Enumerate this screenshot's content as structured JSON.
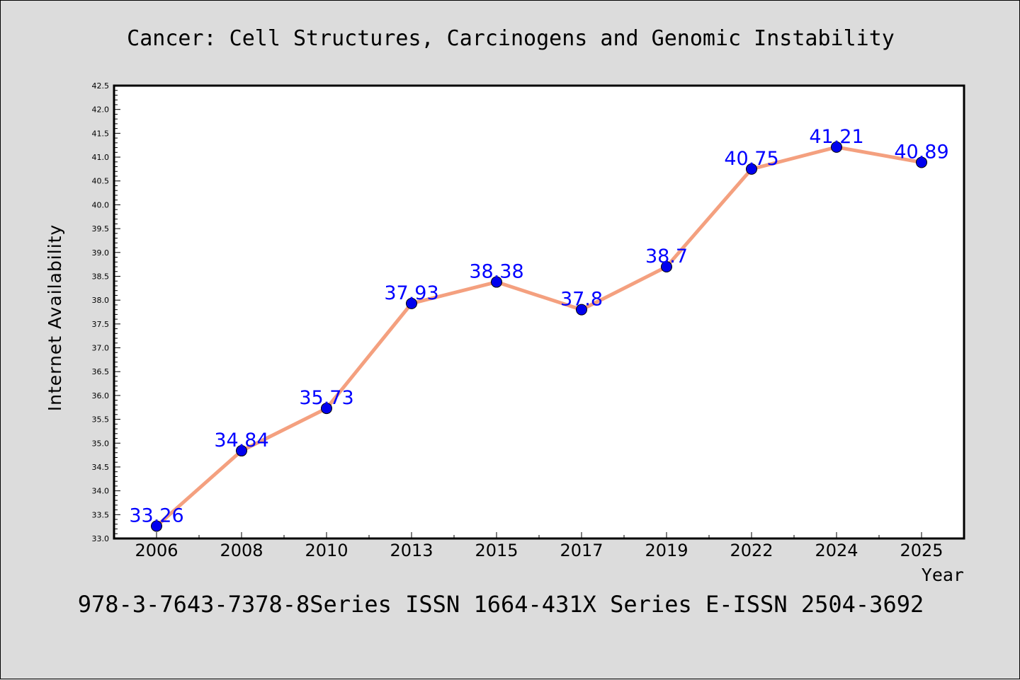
{
  "chart_data": {
    "type": "line",
    "title": "Cancer: Cell Structures, Carcinogens and Genomic Instability",
    "subtitle": "978-3-7643-7378-8Series ISSN 1664-431X Series E-ISSN 2504-3692",
    "xlabel": "Year",
    "ylabel": "Internet Availability",
    "categories": [
      "2006",
      "2008",
      "2010",
      "2013",
      "2015",
      "2017",
      "2019",
      "2022",
      "2024",
      "2025"
    ],
    "series": [
      {
        "values": [
          33.26,
          34.84,
          35.73,
          37.93,
          38.38,
          37.8,
          38.7,
          40.75,
          41.21,
          40.89
        ],
        "labels": [
          "33.26",
          "34.84",
          "35.73",
          "37.93",
          "38.38",
          "37.8",
          "38.7",
          "40.75",
          "41.21",
          "40.89"
        ]
      }
    ],
    "ylim": [
      33.0,
      42.5
    ],
    "yticks": [
      "33.0",
      "33.5",
      "34.0",
      "34.5",
      "35.0",
      "35.5",
      "36.0",
      "36.5",
      "37.0",
      "37.5",
      "38.0",
      "38.5",
      "39.0",
      "39.5",
      "40.0",
      "40.5",
      "41.0",
      "41.5",
      "42.0",
      "42.5"
    ],
    "grid": false,
    "colors": {
      "line": "#f4a07f",
      "marker": "#0000ee",
      "data_label": "#0000ff",
      "plot_bg": "#ffffff",
      "figure_bg": "#dcdcdc"
    }
  }
}
